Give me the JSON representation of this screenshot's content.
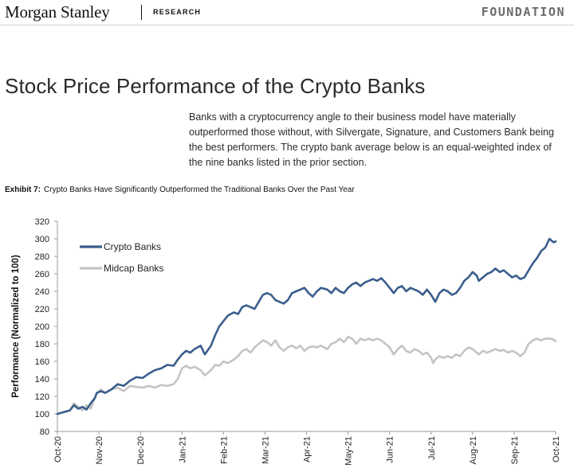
{
  "header": {
    "brand": "Morgan Stanley",
    "section": "RESEARCH",
    "series": "FOUNDATION"
  },
  "page_title": "Stock Price Performance of the Crypto Banks",
  "intro_text": "Banks with a cryptocurrency angle to their business model have materially outperformed those without, with Silvergate, Signature, and Customers Bank being the best performers. The crypto bank average below is an equal-weighted index of the nine banks listed in the prior section.",
  "exhibit": {
    "label": "Exhibit 7:",
    "title": "Crypto Banks Have Significantly Outperformed the Traditional Banks Over the Past Year"
  },
  "colors": {
    "crypto": "#3a5e8c",
    "midcap": "#c4c4c4",
    "axis": "#9a9a9a",
    "text": "#222222"
  },
  "chart_data": {
    "type": "line",
    "title": "Crypto Banks Have Significantly Outperformed the Traditional Banks Over the Past Year",
    "xlabel": "",
    "ylabel": "Performance (Normalized to 100)",
    "ylim": [
      80,
      320
    ],
    "yticks": [
      80,
      100,
      120,
      140,
      160,
      180,
      200,
      220,
      240,
      260,
      280,
      300,
      320
    ],
    "xlim": [
      0,
      12
    ],
    "xticks": [
      {
        "x": 0,
        "label": "Oct-20"
      },
      {
        "x": 1,
        "label": "Nov-20"
      },
      {
        "x": 2,
        "label": "Dec-20"
      },
      {
        "x": 3,
        "label": "Jan-21"
      },
      {
        "x": 4,
        "label": "Feb-21"
      },
      {
        "x": 5,
        "label": "Mar-21"
      },
      {
        "x": 6,
        "label": "Apr-21"
      },
      {
        "x": 7,
        "label": "May-21"
      },
      {
        "x": 8,
        "label": "Jun-21"
      },
      {
        "x": 9,
        "label": "Jul-21"
      },
      {
        "x": 10,
        "label": "Aug-21"
      },
      {
        "x": 11,
        "label": "Sep-21"
      },
      {
        "x": 12,
        "label": "Oct-21"
      }
    ],
    "grid": false,
    "legend_position": "top-left",
    "series": [
      {
        "name": "Crypto Banks",
        "color": "#3a5e8c",
        "points": [
          [
            0.0,
            100
          ],
          [
            0.15,
            102
          ],
          [
            0.3,
            104
          ],
          [
            0.4,
            110
          ],
          [
            0.5,
            106
          ],
          [
            0.6,
            108
          ],
          [
            0.7,
            105
          ],
          [
            0.8,
            112
          ],
          [
            0.9,
            118
          ],
          [
            0.95,
            124
          ],
          [
            1.05,
            126
          ],
          [
            1.15,
            124
          ],
          [
            1.3,
            128
          ],
          [
            1.45,
            134
          ],
          [
            1.6,
            132
          ],
          [
            1.75,
            138
          ],
          [
            1.9,
            142
          ],
          [
            2.05,
            141
          ],
          [
            2.2,
            146
          ],
          [
            2.35,
            150
          ],
          [
            2.5,
            152
          ],
          [
            2.65,
            156
          ],
          [
            2.8,
            155
          ],
          [
            2.9,
            162
          ],
          [
            3.0,
            168
          ],
          [
            3.1,
            172
          ],
          [
            3.2,
            170
          ],
          [
            3.3,
            174
          ],
          [
            3.45,
            178
          ],
          [
            3.55,
            168
          ],
          [
            3.7,
            178
          ],
          [
            3.8,
            190
          ],
          [
            3.9,
            200
          ],
          [
            4.0,
            206
          ],
          [
            4.1,
            212
          ],
          [
            4.25,
            216
          ],
          [
            4.35,
            214
          ],
          [
            4.45,
            222
          ],
          [
            4.55,
            224
          ],
          [
            4.65,
            222
          ],
          [
            4.75,
            220
          ],
          [
            4.85,
            228
          ],
          [
            4.95,
            236
          ],
          [
            5.05,
            238
          ],
          [
            5.15,
            236
          ],
          [
            5.25,
            230
          ],
          [
            5.35,
            228
          ],
          [
            5.45,
            226
          ],
          [
            5.55,
            230
          ],
          [
            5.65,
            238
          ],
          [
            5.75,
            240
          ],
          [
            5.85,
            242
          ],
          [
            5.95,
            244
          ],
          [
            6.05,
            238
          ],
          [
            6.15,
            234
          ],
          [
            6.25,
            240
          ],
          [
            6.35,
            244
          ],
          [
            6.5,
            242
          ],
          [
            6.6,
            238
          ],
          [
            6.7,
            244
          ],
          [
            6.8,
            240
          ],
          [
            6.9,
            238
          ],
          [
            7.0,
            244
          ],
          [
            7.1,
            248
          ],
          [
            7.2,
            250
          ],
          [
            7.3,
            246
          ],
          [
            7.4,
            250
          ],
          [
            7.5,
            252
          ],
          [
            7.6,
            254
          ],
          [
            7.7,
            252
          ],
          [
            7.8,
            255
          ],
          [
            7.9,
            250
          ],
          [
            8.0,
            244
          ],
          [
            8.1,
            238
          ],
          [
            8.2,
            244
          ],
          [
            8.3,
            246
          ],
          [
            8.4,
            240
          ],
          [
            8.5,
            244
          ],
          [
            8.6,
            242
          ],
          [
            8.7,
            240
          ],
          [
            8.8,
            236
          ],
          [
            8.9,
            242
          ],
          [
            9.0,
            236
          ],
          [
            9.05,
            232
          ],
          [
            9.1,
            228
          ],
          [
            9.2,
            238
          ],
          [
            9.3,
            242
          ],
          [
            9.4,
            240
          ],
          [
            9.5,
            236
          ],
          [
            9.6,
            238
          ],
          [
            9.7,
            244
          ],
          [
            9.8,
            252
          ],
          [
            9.9,
            256
          ],
          [
            10.0,
            262
          ],
          [
            10.1,
            258
          ],
          [
            10.15,
            252
          ],
          [
            10.25,
            256
          ],
          [
            10.35,
            260
          ],
          [
            10.45,
            262
          ],
          [
            10.55,
            266
          ],
          [
            10.65,
            262
          ],
          [
            10.75,
            264
          ],
          [
            10.85,
            260
          ],
          [
            10.95,
            256
          ],
          [
            11.05,
            258
          ],
          [
            11.15,
            254
          ],
          [
            11.25,
            256
          ],
          [
            11.35,
            264
          ],
          [
            11.45,
            272
          ],
          [
            11.55,
            278
          ],
          [
            11.65,
            286
          ],
          [
            11.75,
            290
          ],
          [
            11.85,
            300
          ],
          [
            11.9,
            298
          ],
          [
            11.95,
            296
          ],
          [
            12.0,
            297
          ]
        ]
      },
      {
        "name": "Midcap Banks",
        "color": "#c4c4c4",
        "points": [
          [
            0.0,
            100
          ],
          [
            0.15,
            102
          ],
          [
            0.3,
            104
          ],
          [
            0.4,
            112
          ],
          [
            0.5,
            108
          ],
          [
            0.6,
            104
          ],
          [
            0.7,
            110
          ],
          [
            0.8,
            106
          ],
          [
            0.9,
            118
          ],
          [
            0.95,
            124
          ],
          [
            1.05,
            128
          ],
          [
            1.15,
            124
          ],
          [
            1.3,
            128
          ],
          [
            1.45,
            130
          ],
          [
            1.6,
            126
          ],
          [
            1.75,
            132
          ],
          [
            1.9,
            131
          ],
          [
            2.05,
            130
          ],
          [
            2.2,
            132
          ],
          [
            2.35,
            130
          ],
          [
            2.5,
            133
          ],
          [
            2.65,
            132
          ],
          [
            2.8,
            134
          ],
          [
            2.9,
            140
          ],
          [
            3.0,
            152
          ],
          [
            3.1,
            155
          ],
          [
            3.2,
            152
          ],
          [
            3.3,
            154
          ],
          [
            3.45,
            150
          ],
          [
            3.55,
            144
          ],
          [
            3.7,
            150
          ],
          [
            3.8,
            156
          ],
          [
            3.9,
            155
          ],
          [
            4.0,
            160
          ],
          [
            4.1,
            158
          ],
          [
            4.25,
            162
          ],
          [
            4.35,
            166
          ],
          [
            4.45,
            172
          ],
          [
            4.55,
            174
          ],
          [
            4.65,
            170
          ],
          [
            4.75,
            176
          ],
          [
            4.85,
            180
          ],
          [
            4.95,
            184
          ],
          [
            5.05,
            182
          ],
          [
            5.15,
            178
          ],
          [
            5.25,
            184
          ],
          [
            5.35,
            176
          ],
          [
            5.45,
            172
          ],
          [
            5.55,
            176
          ],
          [
            5.65,
            178
          ],
          [
            5.75,
            175
          ],
          [
            5.85,
            178
          ],
          [
            5.95,
            172
          ],
          [
            6.05,
            176
          ],
          [
            6.15,
            177
          ],
          [
            6.25,
            176
          ],
          [
            6.35,
            178
          ],
          [
            6.5,
            174
          ],
          [
            6.6,
            180
          ],
          [
            6.7,
            182
          ],
          [
            6.8,
            186
          ],
          [
            6.9,
            182
          ],
          [
            7.0,
            188
          ],
          [
            7.1,
            186
          ],
          [
            7.2,
            180
          ],
          [
            7.3,
            186
          ],
          [
            7.4,
            184
          ],
          [
            7.5,
            186
          ],
          [
            7.6,
            184
          ],
          [
            7.7,
            186
          ],
          [
            7.8,
            184
          ],
          [
            7.9,
            180
          ],
          [
            8.0,
            176
          ],
          [
            8.1,
            168
          ],
          [
            8.2,
            174
          ],
          [
            8.3,
            178
          ],
          [
            8.4,
            172
          ],
          [
            8.5,
            170
          ],
          [
            8.6,
            174
          ],
          [
            8.7,
            172
          ],
          [
            8.8,
            168
          ],
          [
            8.9,
            170
          ],
          [
            9.0,
            164
          ],
          [
            9.05,
            158
          ],
          [
            9.1,
            162
          ],
          [
            9.2,
            166
          ],
          [
            9.3,
            164
          ],
          [
            9.4,
            166
          ],
          [
            9.5,
            164
          ],
          [
            9.6,
            168
          ],
          [
            9.7,
            166
          ],
          [
            9.8,
            172
          ],
          [
            9.9,
            176
          ],
          [
            10.0,
            174
          ],
          [
            10.1,
            170
          ],
          [
            10.15,
            168
          ],
          [
            10.25,
            172
          ],
          [
            10.35,
            170
          ],
          [
            10.45,
            172
          ],
          [
            10.55,
            174
          ],
          [
            10.65,
            172
          ],
          [
            10.75,
            173
          ],
          [
            10.85,
            170
          ],
          [
            10.95,
            172
          ],
          [
            11.05,
            170
          ],
          [
            11.15,
            166
          ],
          [
            11.25,
            170
          ],
          [
            11.35,
            180
          ],
          [
            11.45,
            184
          ],
          [
            11.55,
            186
          ],
          [
            11.65,
            184
          ],
          [
            11.75,
            186
          ],
          [
            11.85,
            186
          ],
          [
            11.95,
            185
          ],
          [
            12.0,
            183
          ]
        ]
      }
    ]
  }
}
